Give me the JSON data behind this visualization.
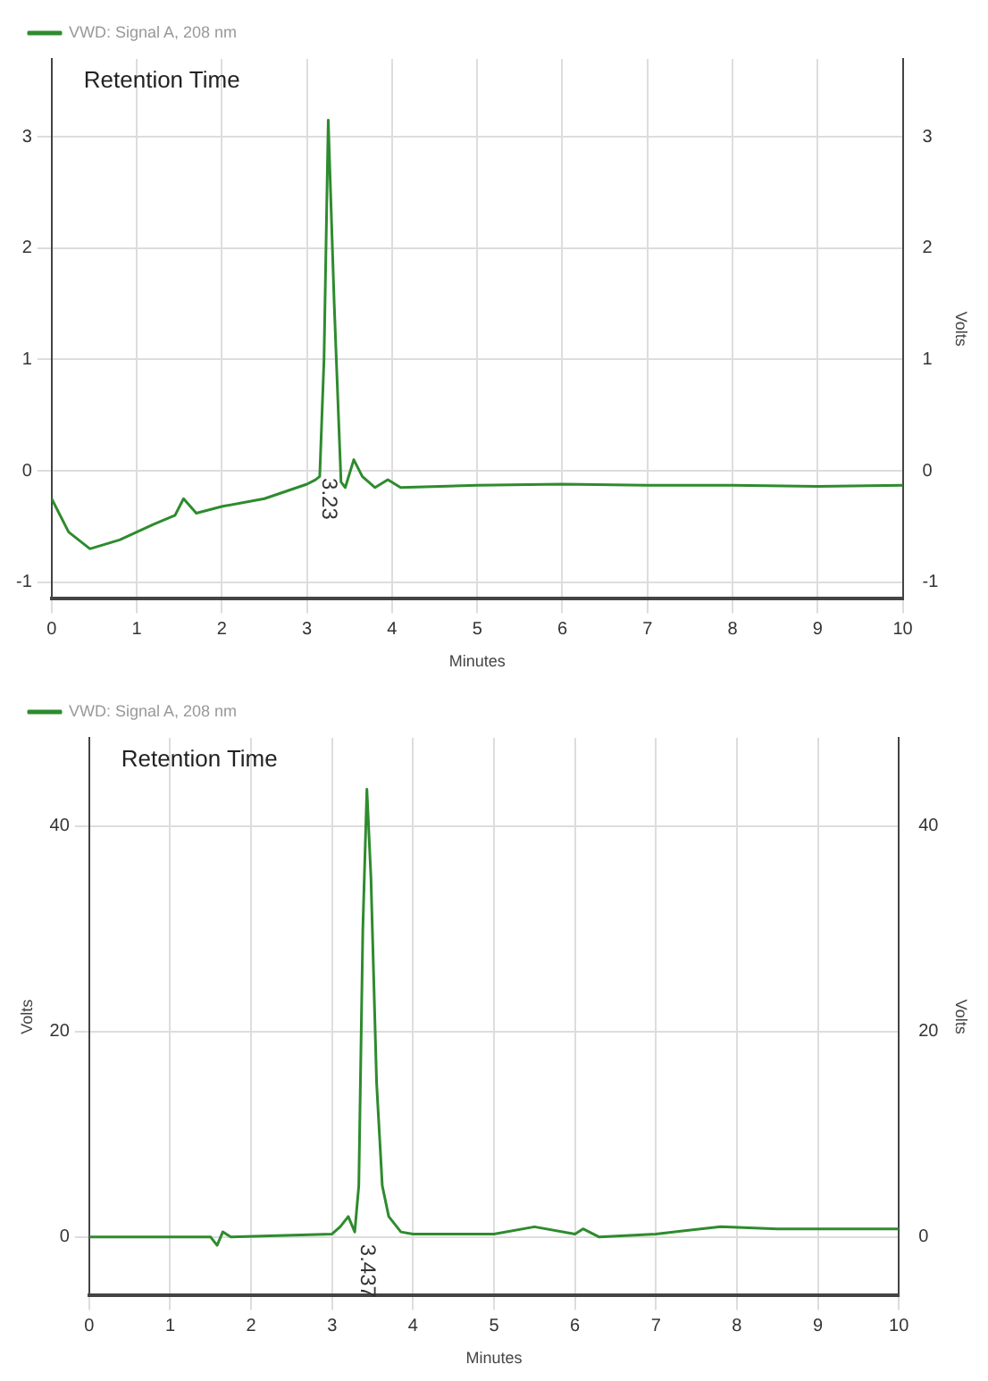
{
  "chart_data": [
    {
      "type": "line",
      "xlabel": "Minutes",
      "y2label": "Volts",
      "legend": "top left",
      "grid": true,
      "marker": "none",
      "line_style": "solid",
      "xlim": [
        0,
        10
      ],
      "xticks": [
        0,
        1,
        2,
        3,
        4,
        5,
        6,
        7,
        8,
        9,
        10
      ],
      "ylim": [
        -1.15,
        3.7
      ],
      "yticks": [
        -1,
        0,
        1,
        2,
        3
      ],
      "y2lim": [
        -1.15,
        3.7
      ],
      "y2ticks": [
        -1,
        0,
        1,
        2,
        3
      ],
      "annotations": [
        "Retention Time",
        "3.23"
      ],
      "series": [
        {
          "name": "VWD: Signal A, 208 nm",
          "color": "#2e8b2e",
          "x": [
            0,
            0.2,
            0.45,
            0.8,
            1.2,
            1.45,
            1.55,
            1.7,
            2,
            2.5,
            3,
            3.1,
            3.15,
            3.2,
            3.25,
            3.32,
            3.4,
            3.45,
            3.55,
            3.65,
            3.8,
            3.95,
            4.1,
            5,
            6,
            7,
            8,
            9,
            10
          ],
          "values": [
            -0.25,
            -0.55,
            -0.7,
            -0.62,
            -0.48,
            -0.4,
            -0.25,
            -0.38,
            -0.32,
            -0.25,
            -0.12,
            -0.08,
            -0.05,
            1,
            3.15,
            1.5,
            -0.1,
            -0.15,
            0.1,
            -0.05,
            -0.15,
            -0.08,
            -0.15,
            -0.13,
            -0.12,
            -0.13,
            -0.13,
            -0.14,
            -0.13
          ]
        }
      ]
    },
    {
      "type": "line",
      "xlabel": "Minutes",
      "ylabel": "Volts",
      "y2label": "Volts",
      "legend": "top left",
      "grid": true,
      "marker": "none",
      "line_style": "solid",
      "xlim": [
        0,
        10
      ],
      "xticks": [
        0,
        1,
        2,
        3,
        4,
        5,
        6,
        7,
        8,
        9,
        10
      ],
      "ylim": [
        -5.7,
        48.6
      ],
      "yticks": [
        0,
        20,
        40
      ],
      "y2lim": [
        -5.7,
        48.6
      ],
      "y2ticks": [
        0,
        20,
        40
      ],
      "annotations": [
        "Retention Time",
        "3.437"
      ],
      "series": [
        {
          "name": "VWD: Signal A, 208 nm",
          "color": "#2e8b2e",
          "x": [
            0,
            1.5,
            1.58,
            1.65,
            1.75,
            3,
            3.1,
            3.2,
            3.28,
            3.33,
            3.38,
            3.43,
            3.48,
            3.55,
            3.62,
            3.7,
            3.85,
            4,
            5,
            5.5,
            6,
            6.1,
            6.3,
            7,
            7.8,
            8.5,
            10
          ],
          "values": [
            0,
            0,
            -0.8,
            0.5,
            0,
            0.3,
            1,
            2,
            0.5,
            5,
            30,
            43.6,
            35,
            15,
            5,
            2,
            0.5,
            0.3,
            0.3,
            1,
            0.3,
            0.8,
            0,
            0.3,
            1,
            0.8,
            0.8
          ]
        }
      ]
    }
  ]
}
